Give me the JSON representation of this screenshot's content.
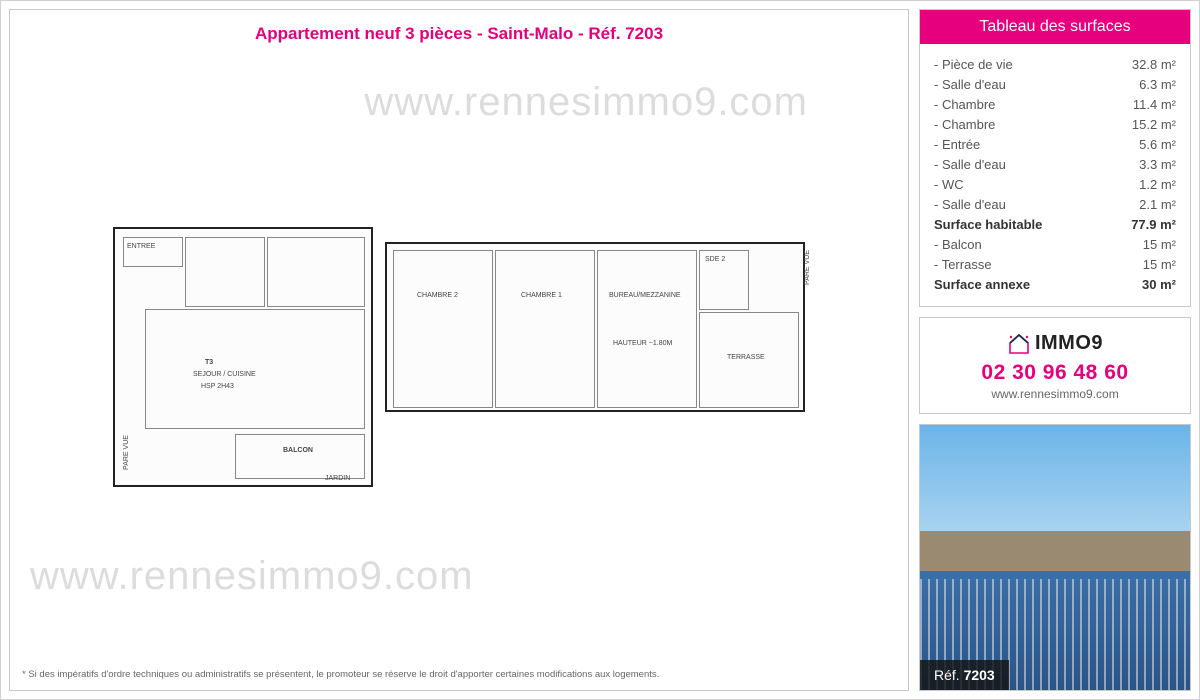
{
  "colors": {
    "accent": "#e6007e",
    "border": "#c8c8c8",
    "text": "#555555"
  },
  "title": "Appartement neuf 3 pièces - Saint-Malo - Réf. 7203",
  "watermark": "www.rennesimmo9.com",
  "footnote": "* Si des impératifs d'ordre techniques ou administratifs se présentent, le promoteur se réserve le droit d'apporter certaines modifications aux logements.",
  "floorplan": {
    "unit_label": "T3",
    "rooms_a": [
      "ENTREE",
      "SEJOUR / CUISINE",
      "BALCON",
      "PARE VUE",
      "JARDIN",
      "HSP 2h43"
    ],
    "rooms_b": [
      "CHAMBRE 2",
      "CHAMBRE 1",
      "BUREAU/MEZZANINE",
      "TERRASSE",
      "SDE 2",
      "PARE VUE",
      "Hauteur ~1.80m"
    ]
  },
  "surfaces": {
    "header": "Tableau des surfaces",
    "rows": [
      {
        "label": "- Pièce de vie",
        "value": "32.8 m²",
        "bold": false
      },
      {
        "label": "- Salle d'eau",
        "value": "6.3 m²",
        "bold": false
      },
      {
        "label": "- Chambre",
        "value": "11.4 m²",
        "bold": false
      },
      {
        "label": "- Chambre",
        "value": "15.2 m²",
        "bold": false
      },
      {
        "label": "- Entrée",
        "value": "5.6 m²",
        "bold": false
      },
      {
        "label": "- Salle d'eau",
        "value": "3.3 m²",
        "bold": false
      },
      {
        "label": "- WC",
        "value": "1.2 m²",
        "bold": false
      },
      {
        "label": "- Salle d'eau",
        "value": "2.1 m²",
        "bold": false
      },
      {
        "label": "Surface habitable",
        "value": "77.9 m²",
        "bold": true
      },
      {
        "label": "- Balcon",
        "value": "15 m²",
        "bold": false
      },
      {
        "label": "- Terrasse",
        "value": "15 m²",
        "bold": false
      },
      {
        "label": "Surface annexe",
        "value": "30 m²",
        "bold": true
      }
    ]
  },
  "contact": {
    "brand": "IMMO9",
    "phone": "02 30 96 48 60",
    "website": "www.rennesimmo9.com"
  },
  "ref": {
    "prefix": "Réf.",
    "number": "7203"
  }
}
